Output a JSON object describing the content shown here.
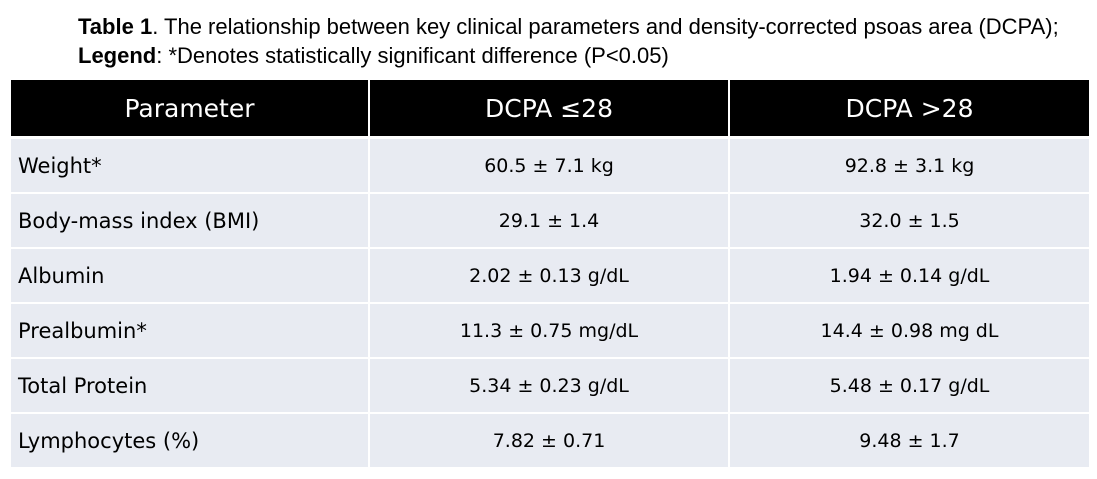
{
  "caption": {
    "table_label": "Table 1",
    "text_part1": ". The relationship between key clinical parameters and density-corrected psoas area (DCPA); ",
    "legend_label": "Legend",
    "text_part2": ": *Denotes statistically significant difference (P<0.05)"
  },
  "table": {
    "headers": [
      "Parameter",
      "DCPA ≤28",
      "DCPA >28"
    ],
    "rows": [
      [
        "Weight*",
        "60.5 ± 7.1 kg",
        "92.8 ± 3.1 kg"
      ],
      [
        "Body-mass index (BMI)",
        "29.1 ± 1.4",
        "32.0 ± 1.5"
      ],
      [
        "Albumin",
        "2.02 ± 0.13 g/dL",
        "1.94 ± 0.14 g/dL"
      ],
      [
        "Prealbumin*",
        "11.3 ± 0.75 mg/dL",
        "14.4 ± 0.98 mg dL"
      ],
      [
        "Total Protein",
        "5.34 ± 0.23 g/dL",
        "5.48 ± 0.17 g/dL"
      ],
      [
        "Lymphocytes (%)",
        "7.82 ± 0.71",
        "9.48 ± 1.7"
      ]
    ]
  },
  "colors": {
    "header_bg": "#000000",
    "header_text": "#ffffff",
    "row_bg": "#e8ebf2"
  }
}
